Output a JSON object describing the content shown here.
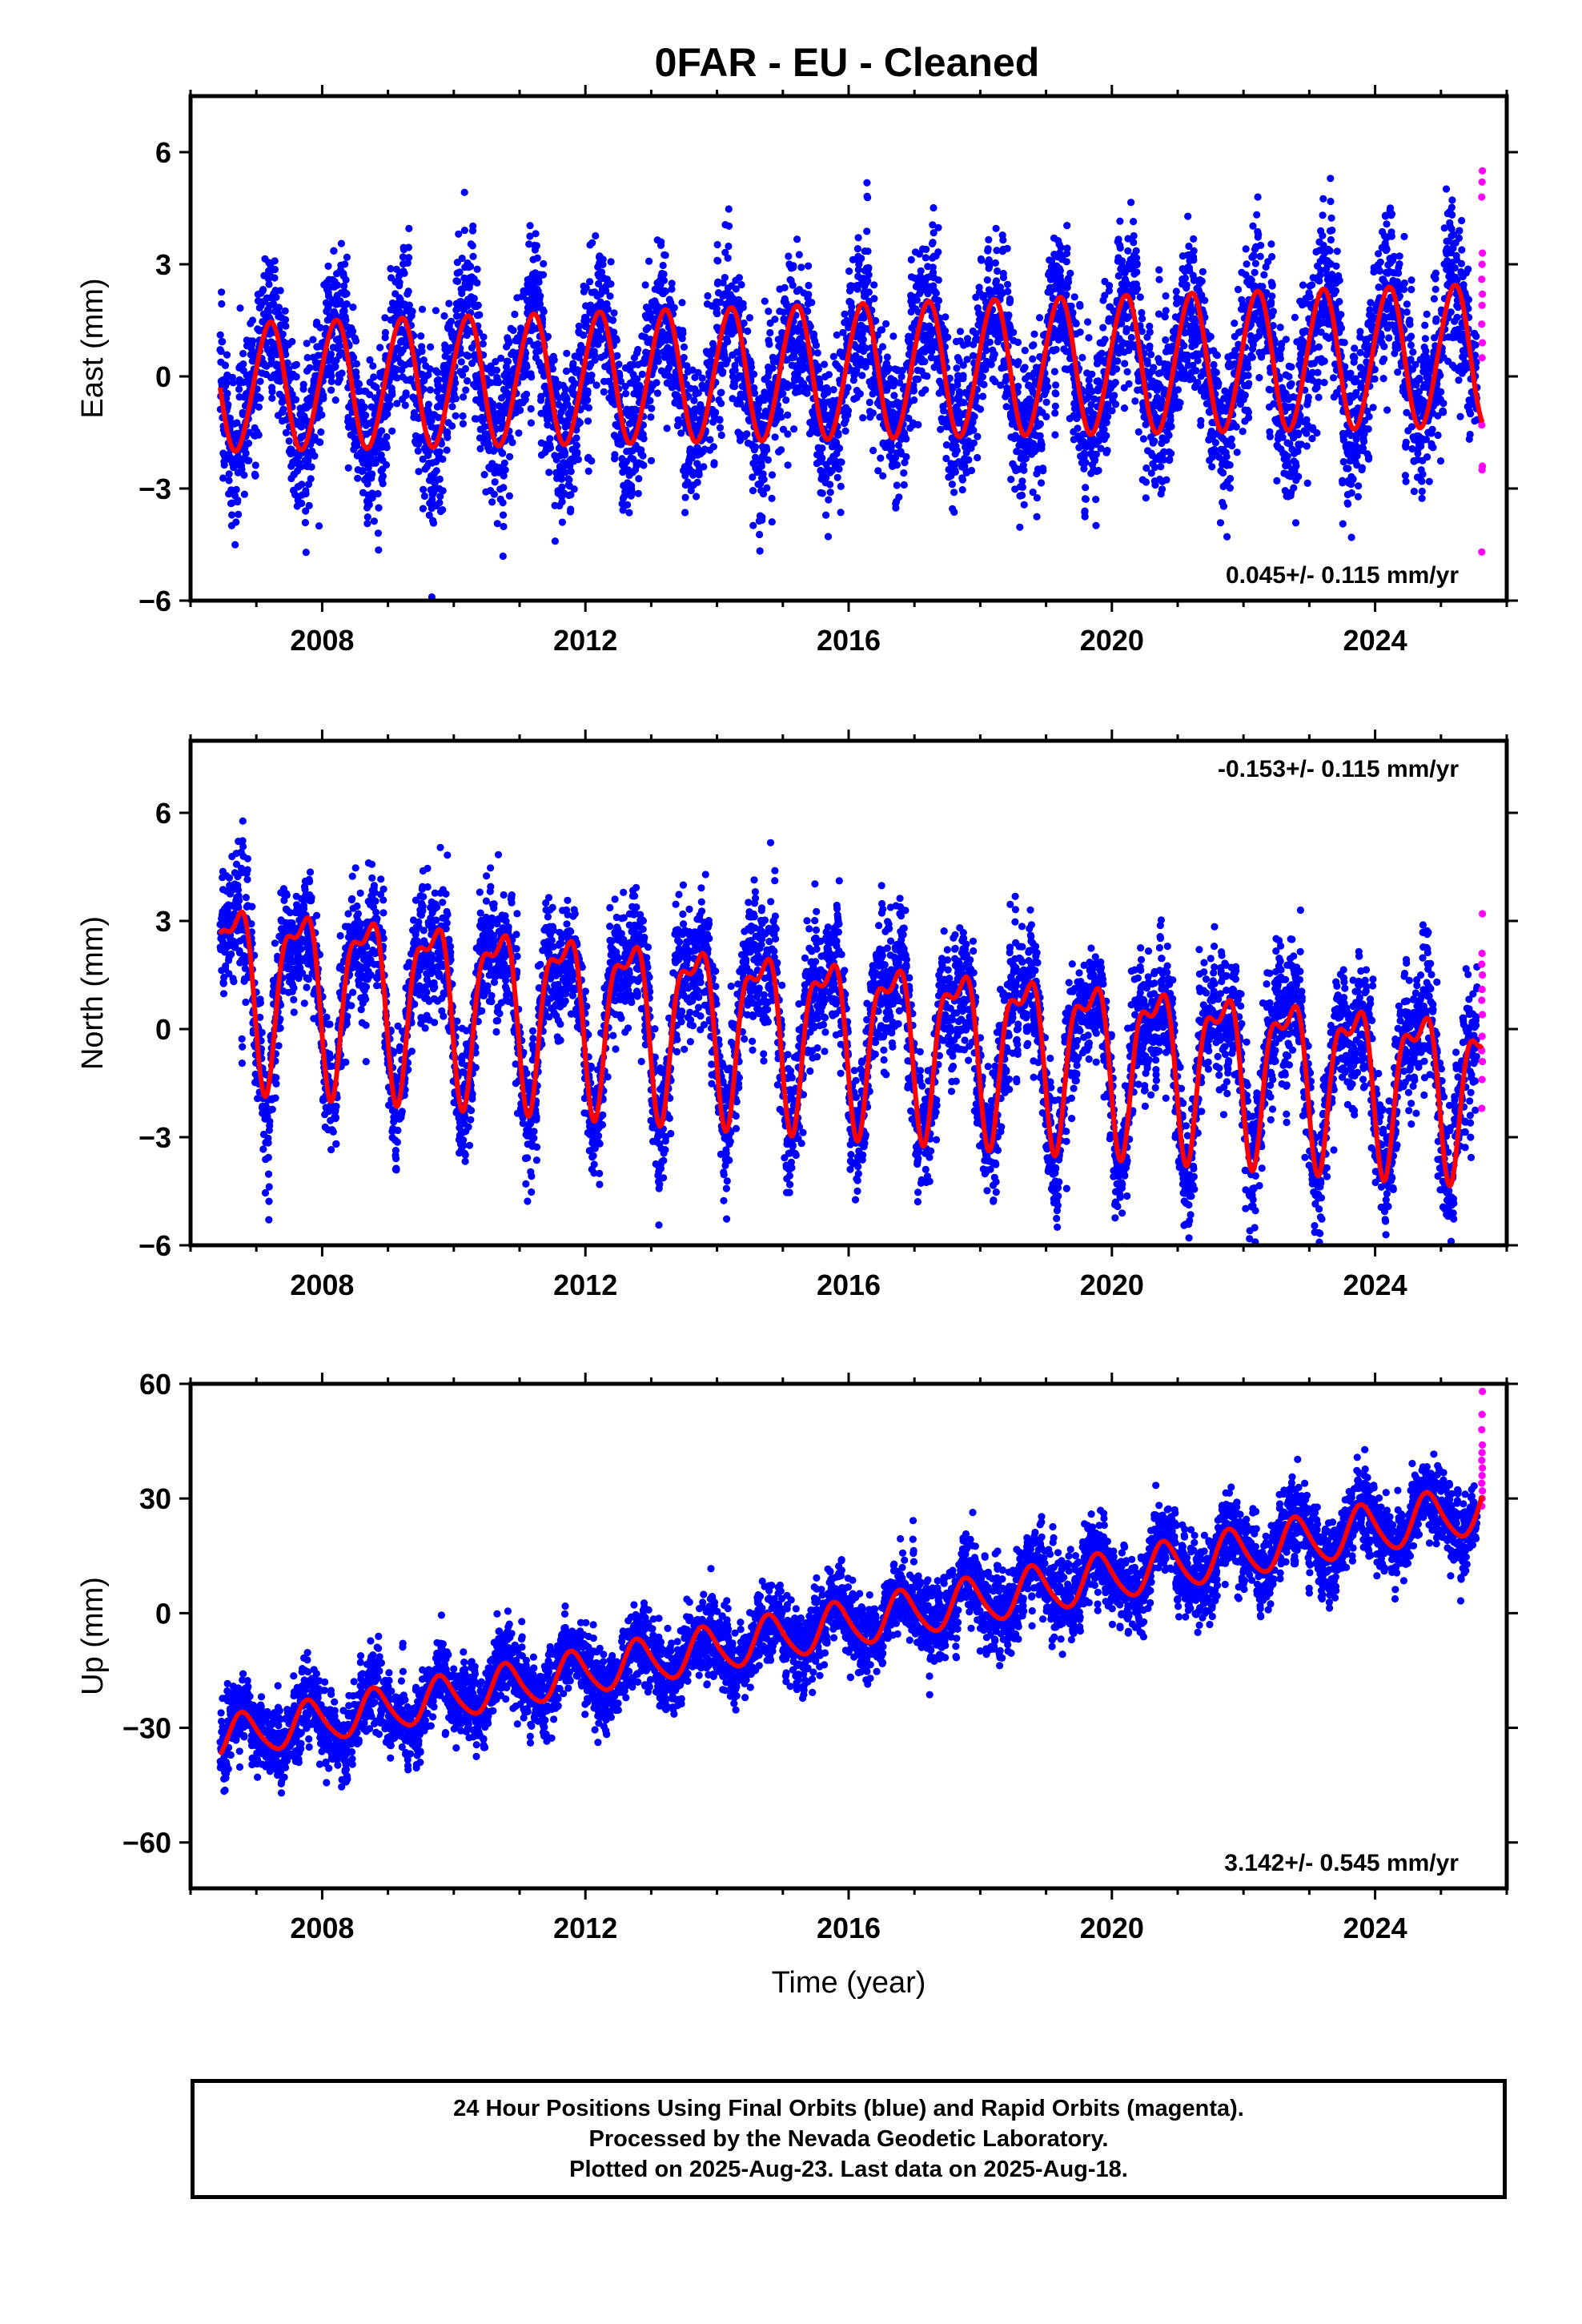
{
  "title": "0FAR  - EU - Cleaned",
  "colors": {
    "final": "#0000ff",
    "rapid": "#ff00ff",
    "model": "#ff0000"
  },
  "chart_data": [
    {
      "type": "scatter",
      "component": "east",
      "ylabel": "East (mm)",
      "xlim": [
        2006.0,
        2026.0
      ],
      "ylim": [
        -6.0,
        7.5
      ],
      "xticks": [
        2008,
        2012,
        2016,
        2020,
        2024
      ],
      "xtick_labels": [
        "2008",
        "2012",
        "2016",
        "2020",
        "2024"
      ],
      "yticks": [
        -6,
        -3,
        0,
        3,
        6
      ],
      "ytick_labels": [
        "−6",
        "−3",
        "0",
        "3",
        "6"
      ],
      "rate_text": "0.045+/- 0.115 mm/yr",
      "rate_position": "bottom-right",
      "data_start": 2006.45,
      "data_end": 2025.63,
      "rapid_start": 2025.55,
      "scatter_sd": 1.1,
      "model": {
        "offset": -0.3,
        "rate_mm_per_yr": 0.045,
        "annual_amp_start": 1.7,
        "annual_amp_end": 1.9,
        "annual_phase": 0.95,
        "semiannual_amp": 0.1,
        "semiannual_phase": 0.2
      },
      "rapid_points": [
        5.5,
        5.2,
        4.8,
        3.3,
        3.0,
        2.6,
        2.2,
        1.9,
        1.4,
        0.9,
        0.5,
        -1.3,
        -2.4,
        -2.5,
        -4.7
      ]
    },
    {
      "type": "scatter",
      "component": "north",
      "ylabel": "North (mm)",
      "xlim": [
        2006.0,
        2026.0
      ],
      "ylim": [
        -6.0,
        8.0
      ],
      "xticks": [
        2008,
        2012,
        2016,
        2020,
        2024
      ],
      "xtick_labels": [
        "2008",
        "2012",
        "2016",
        "2020",
        "2024"
      ],
      "yticks": [
        -6,
        -3,
        0,
        3,
        6
      ],
      "ytick_labels": [
        "−6",
        "−3",
        "0",
        "3",
        "6"
      ],
      "rate_text": "-0.153+/- 0.115 mm/yr",
      "rate_position": "top-right",
      "data_start": 2006.45,
      "data_end": 2025.63,
      "rapid_start": 2025.55,
      "scatter_sd": 0.95,
      "model": {
        "offset": 1.4,
        "rate_mm_per_yr": -0.153,
        "annual_amp_start": 2.3,
        "annual_amp_end": 2.0,
        "annual_phase": 0.4,
        "semiannual_amp": 0.9,
        "semiannual_phase": 0.75
      },
      "rapid_points": [
        3.2,
        2.1,
        1.8,
        1.5,
        1.1,
        0.8,
        0.4,
        -0.2,
        -0.6,
        -0.9,
        -1.4,
        -2.2
      ]
    },
    {
      "type": "scatter",
      "component": "up",
      "ylabel": "Up (mm)",
      "xlabel": "Time (year)",
      "xlim": [
        2006.0,
        2026.0
      ],
      "ylim": [
        -72.0,
        60.0
      ],
      "xticks": [
        2008,
        2012,
        2016,
        2020,
        2024
      ],
      "xtick_labels": [
        "2008",
        "2012",
        "2016",
        "2020",
        "2024"
      ],
      "yticks": [
        -60,
        -30,
        0,
        30,
        60
      ],
      "ytick_labels": [
        "−60",
        "−30",
        "0",
        "30",
        "60"
      ],
      "rate_text": "3.142+/- 0.545 mm/yr",
      "rate_position": "bottom-right",
      "data_start": 2006.45,
      "data_end": 2025.63,
      "rapid_start": 2025.55,
      "scatter_sd": 5.2,
      "model": {
        "offset": -33.0,
        "rate_mm_per_yr": 3.142,
        "annual_amp_start": 5.5,
        "annual_amp_end": 6.5,
        "annual_phase": 0.55,
        "semiannual_amp": 0.8,
        "semiannual_phase": 0.1
      },
      "rapid_points": [
        58,
        52,
        48,
        44,
        42,
        40,
        38,
        36,
        34,
        32,
        30,
        28
      ]
    }
  ],
  "footer": {
    "line1": "24 Hour Positions Using Final Orbits (blue) and Rapid Orbits (magenta).",
    "line2": "Processed by the Nevada Geodetic Laboratory.",
    "line3": "Plotted on 2025-Aug-23. Last data on 2025-Aug-18."
  }
}
